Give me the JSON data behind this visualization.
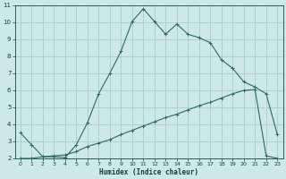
{
  "xlabel": "Humidex (Indice chaleur)",
  "bg_color": "#cce8e8",
  "grid_color": "#aacccc",
  "line_color": "#2d6b5e",
  "xlim": [
    -0.5,
    23.5
  ],
  "ylim": [
    2,
    11
  ],
  "xticks": [
    0,
    1,
    2,
    3,
    4,
    5,
    6,
    7,
    8,
    9,
    10,
    11,
    12,
    13,
    14,
    15,
    16,
    17,
    18,
    19,
    20,
    21,
    22,
    23
  ],
  "yticks": [
    2,
    3,
    4,
    5,
    6,
    7,
    8,
    9,
    10,
    11
  ],
  "curve1_x": [
    0,
    1,
    2,
    3,
    4,
    5,
    6,
    7,
    8,
    9,
    10,
    11,
    12,
    13,
    14,
    15,
    16,
    17,
    18,
    19,
    20,
    21,
    22,
    23
  ],
  "curve1_y": [
    3.5,
    2.8,
    2.1,
    2.1,
    2.05,
    2.8,
    4.1,
    5.8,
    7.0,
    8.3,
    10.05,
    10.8,
    10.05,
    9.3,
    9.9,
    9.3,
    9.1,
    8.8,
    7.8,
    7.3,
    6.5,
    6.2,
    5.8,
    3.4
  ],
  "curve2_x": [
    0,
    1,
    2,
    3,
    4,
    5,
    6,
    7,
    8,
    9,
    10,
    11,
    12,
    13,
    14,
    15,
    16,
    17,
    18,
    19,
    20,
    21,
    22,
    23
  ],
  "curve2_y": [
    2.0,
    2.0,
    2.1,
    2.15,
    2.2,
    2.4,
    2.7,
    2.9,
    3.1,
    3.4,
    3.65,
    3.9,
    4.15,
    4.4,
    4.6,
    4.85,
    5.1,
    5.3,
    5.55,
    5.8,
    6.0,
    6.05,
    2.15,
    2.0
  ]
}
